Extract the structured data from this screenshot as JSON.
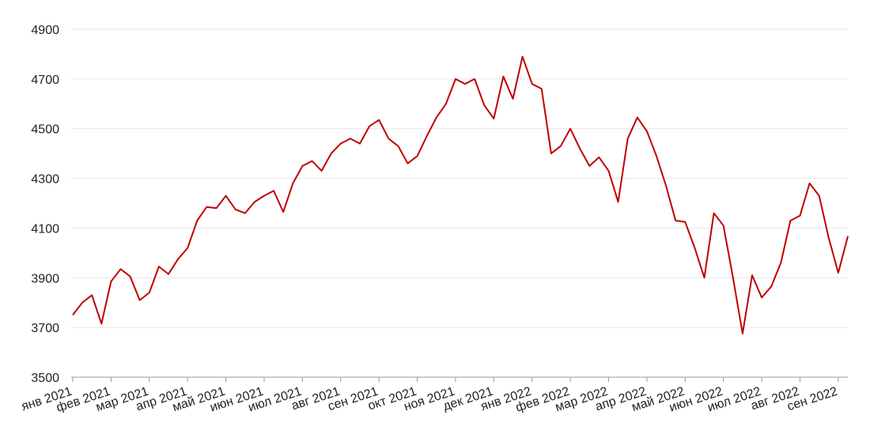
{
  "chart_data": {
    "type": "line",
    "color": "#c00000",
    "grid": true,
    "ylim": [
      3500,
      4900
    ],
    "yticks": [
      3500,
      3700,
      3900,
      4100,
      4300,
      4500,
      4700,
      4900
    ],
    "categories": [
      "янв 2021",
      null,
      null,
      null,
      "фев 2021",
      null,
      null,
      null,
      "мар 2021",
      null,
      null,
      null,
      "апр 2021",
      null,
      null,
      null,
      "май 2021",
      null,
      null,
      null,
      "июн 2021",
      null,
      null,
      null,
      "июл 2021",
      null,
      null,
      null,
      "авг 2021",
      null,
      null,
      null,
      "сен 2021",
      null,
      null,
      null,
      "окт 2021",
      null,
      null,
      null,
      "ноя 2021",
      null,
      null,
      null,
      "дек 2021",
      null,
      null,
      null,
      "янв 2022",
      null,
      null,
      null,
      "фев 2022",
      null,
      null,
      null,
      "мар 2022",
      null,
      null,
      null,
      "апр 2022",
      null,
      null,
      null,
      "май 2022",
      null,
      null,
      null,
      "июн 2022",
      null,
      null,
      null,
      "июл 2022",
      null,
      null,
      null,
      "авг 2022",
      null,
      null,
      null,
      "сен 2022",
      null
    ],
    "values": [
      3750,
      3800,
      3830,
      3715,
      3885,
      3935,
      3905,
      3810,
      3840,
      3945,
      3915,
      3975,
      4020,
      4130,
      4185,
      4180,
      4230,
      4175,
      4160,
      4205,
      4230,
      4250,
      4165,
      4280,
      4350,
      4370,
      4330,
      4400,
      4440,
      4460,
      4440,
      4510,
      4535,
      4460,
      4430,
      4360,
      4390,
      4470,
      4545,
      4600,
      4700,
      4680,
      4700,
      4595,
      4540,
      4710,
      4620,
      4790,
      4680,
      4660,
      4400,
      4430,
      4500,
      4420,
      4350,
      4385,
      4330,
      4205,
      4460,
      4545,
      4490,
      4390,
      4270,
      4130,
      4125,
      4020,
      3900,
      4160,
      4110,
      3900,
      3675,
      3910,
      3820,
      3865,
      3960,
      4130,
      4150,
      4280,
      4230,
      4060,
      3920,
      4067
    ]
  }
}
